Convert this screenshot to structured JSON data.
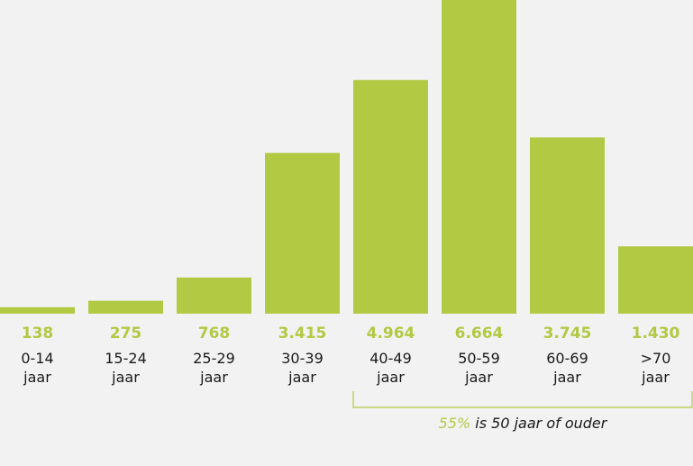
{
  "colors": {
    "bar": "#b2c944",
    "value_text": "#b2c944",
    "label_text": "#1a1a1a",
    "annotation_highlight": "#b2c944",
    "annotation_text": "#1a1a1a",
    "bracket": "#b2c944"
  },
  "chart_data": {
    "type": "bar",
    "categories": [
      [
        "0-14",
        "jaar"
      ],
      [
        "15-24",
        "jaar"
      ],
      [
        "25-29",
        "jaar"
      ],
      [
        "30-39",
        "jaar"
      ],
      [
        "40-49",
        "jaar"
      ],
      [
        "50-59",
        "jaar"
      ],
      [
        "60-69",
        "jaar"
      ],
      [
        ">70",
        "jaar"
      ]
    ],
    "values": [
      138,
      275,
      768,
      3415,
      4964,
      6664,
      3745,
      1430
    ],
    "value_labels": [
      "138",
      "275",
      "768",
      "3.415",
      "4.964",
      "6.664",
      "3.745",
      "1.430"
    ],
    "title": "",
    "xlabel": "",
    "ylabel": "",
    "grid": false,
    "annotation": {
      "highlight": "55%",
      "text": " is 50 jaar of ouder",
      "bracket_from_category": 4,
      "bracket_to_category": 7
    }
  }
}
